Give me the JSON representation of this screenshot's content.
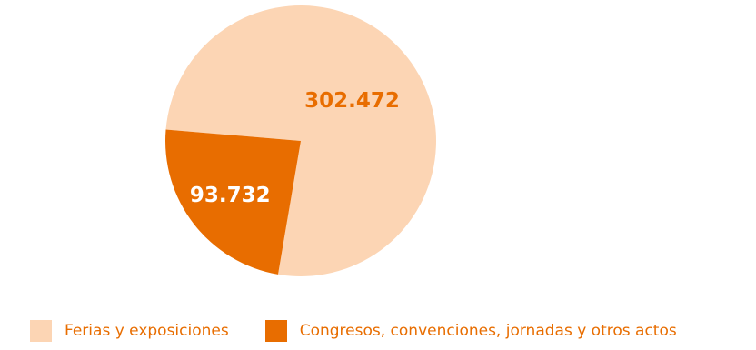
{
  "chart_data": {
    "type": "pie",
    "categories": [
      "Ferias y exposiciones",
      "Congresos, convenciones, jornadas y otros actos"
    ],
    "values": [
      302472,
      93732
    ],
    "data_labels": [
      "302.472",
      "93.732"
    ],
    "colors": [
      "#fcd5b4",
      "#e86d00"
    ],
    "label_colors": [
      "#e86d00",
      "#ffffff"
    ],
    "legend_position": "bottom",
    "legend_text_color": "#e86d00"
  }
}
